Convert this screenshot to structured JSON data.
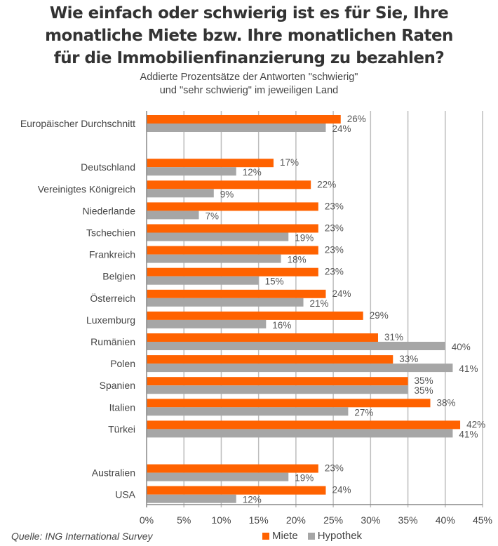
{
  "chart_data": {
    "type": "bar",
    "orientation": "horizontal",
    "title": "Wie einfach oder schwierig ist es für Sie, Ihre monatliche Miete bzw. Ihre monatlichen Raten für die Immobilienfinanzierung zu bezahlen?",
    "title_lines": [
      "Wie einfach oder schwierig ist es für Sie, Ihre",
      "monatliche Miete bzw. Ihre monatlichen Raten",
      "für die Immobilienfinanzierung zu bezahlen?"
    ],
    "subtitle_lines": [
      "Addierte Prozentsätze der Antworten \"schwierig\"",
      "und \"sehr schwierig\" im jeweiligen Land"
    ],
    "xlabel": "",
    "ylabel": "",
    "xlim": [
      0,
      45
    ],
    "x_ticks": [
      0,
      5,
      10,
      15,
      20,
      25,
      30,
      35,
      40,
      45
    ],
    "x_tick_labels": [
      "0%",
      "5%",
      "10%",
      "15%",
      "20%",
      "25%",
      "30%",
      "35%",
      "40%",
      "45%"
    ],
    "grid": "vertical",
    "legend_position": "bottom",
    "categories": [
      "Europäischer Durchschnitt",
      "Deutschland",
      "Vereinigtes Königreich",
      "Niederlande",
      "Tschechien",
      "Frankreich",
      "Belgien",
      "Österreich",
      "Luxemburg",
      "Rumänien",
      "Polen",
      "Spanien",
      "Italien",
      "Türkei",
      "Australien",
      "USA"
    ],
    "group_break_after": [
      "Europäischer Durchschnitt",
      "Türkei"
    ],
    "series": [
      {
        "name": "Miete",
        "color": "#FF6200",
        "values": [
          26,
          17,
          22,
          23,
          23,
          23,
          23,
          24,
          29,
          31,
          33,
          35,
          38,
          42,
          23,
          24
        ],
        "labels": [
          "26%",
          "17%",
          "22%",
          "23%",
          "23%",
          "23%",
          "23%",
          "24%",
          "29%",
          "31%",
          "33%",
          "35%",
          "38%",
          "42%",
          "23%",
          "24%"
        ]
      },
      {
        "name": "Hypothek",
        "color": "#A6A6A6",
        "values": [
          24,
          12,
          9,
          7,
          19,
          18,
          15,
          21,
          16,
          40,
          41,
          35,
          27,
          41,
          19,
          12
        ],
        "labels": [
          "24%",
          "12%",
          "9%",
          "7%",
          "19%",
          "18%",
          "15%",
          "21%",
          "16%",
          "40%",
          "41%",
          "35%",
          "27%",
          "41%",
          "19%",
          "12%"
        ]
      }
    ]
  },
  "source": "Quelle: ING International Survey",
  "colors": {
    "miete": "#FF6200",
    "hypothek": "#A6A6A6",
    "grid": "#BDBDBD",
    "axis": "#888888",
    "title": "#333333"
  }
}
